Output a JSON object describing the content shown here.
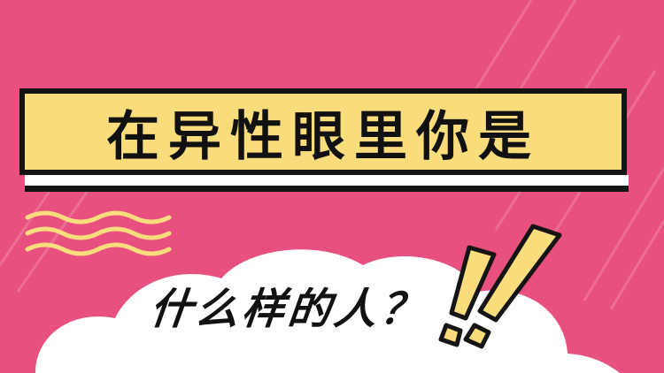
{
  "headline": "在异性眼里你是",
  "subline": "什么样的人？",
  "colors": {
    "background": "#e8517f",
    "banner": "#f9dc7c",
    "outline": "#141414",
    "cloud": "#ffffff",
    "accent": "#f9dc7c"
  },
  "decorations": {
    "left_wave": "wavy-lines-icon",
    "right_marks": "double-exclamation-icon"
  }
}
